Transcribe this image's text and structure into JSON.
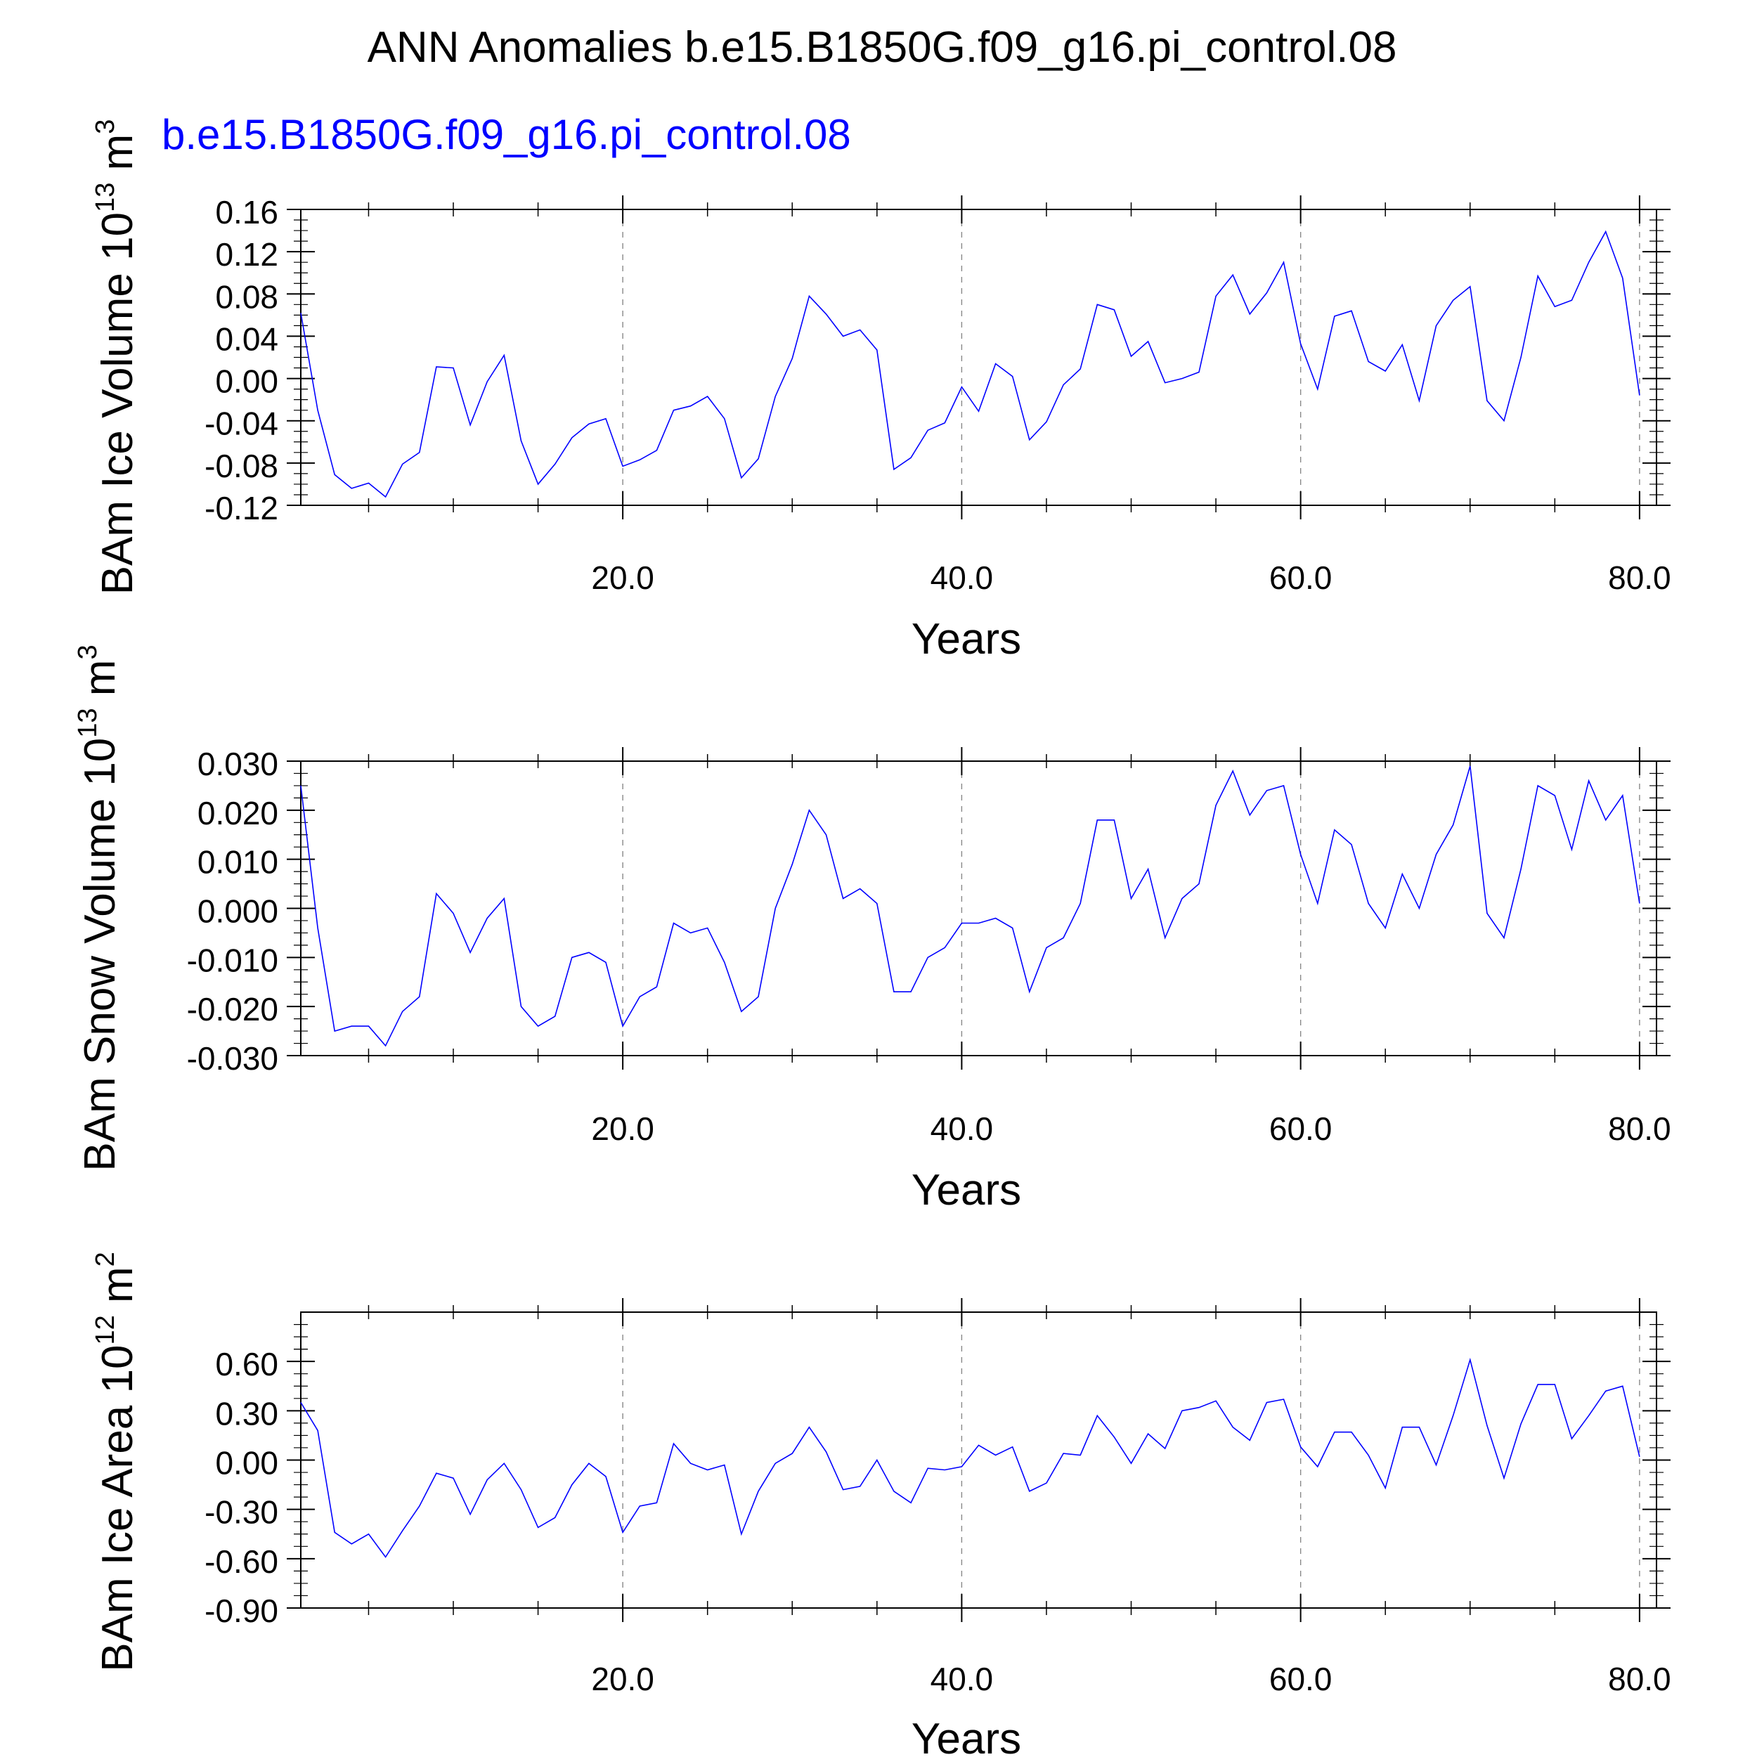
{
  "figure": {
    "title": "ANN Anomalies b.e15.B1850G.f09_g16.pi_control.08",
    "subtitle": "b.e15.B1850G.f09_g16.pi_control.08",
    "subtitle_color": "#0000ff",
    "line_color": "#0000ff"
  },
  "chart_data": [
    {
      "type": "line",
      "ylabel_main": "BAm Ice Volume 10",
      "ylabel_exp": "13",
      "ylabel_unit": " m",
      "ylabel_unit_exp": "3",
      "xlabel": "Years",
      "xlim": [
        1,
        81
      ],
      "ylim": [
        -0.12,
        0.16
      ],
      "xticks": [
        20,
        40,
        60,
        80
      ],
      "xtick_labels": [
        "20.0",
        "40.0",
        "60.0",
        "80.0"
      ],
      "yticks": [
        -0.12,
        -0.08,
        -0.04,
        0.0,
        0.04,
        0.08,
        0.12,
        0.16
      ],
      "ytick_labels": [
        "-0.12",
        "-0.08",
        "-0.04",
        "0.00",
        "0.04",
        "0.08",
        "0.12",
        "0.16"
      ],
      "grid": "vertical dashed at major x ticks",
      "series": [
        {
          "values": [
            0.062,
            -0.03,
            -0.091,
            -0.104,
            -0.099,
            -0.112,
            -0.081,
            -0.07,
            0.011,
            0.01,
            -0.044,
            -0.003,
            0.022,
            -0.059,
            -0.1,
            -0.081,
            -0.056,
            -0.043,
            -0.038,
            -0.083,
            -0.077,
            -0.068,
            -0.03,
            -0.026,
            -0.017,
            -0.038,
            -0.094,
            -0.076,
            -0.017,
            0.019,
            0.078,
            0.061,
            0.04,
            0.046,
            0.027,
            -0.086,
            -0.075,
            -0.049,
            -0.042,
            -0.008,
            -0.031,
            0.014,
            0.002,
            -0.058,
            -0.041,
            -0.006,
            0.009,
            0.07,
            0.065,
            0.021,
            0.035,
            -0.004,
            0.0,
            0.006,
            0.078,
            0.098,
            0.061,
            0.081,
            0.11,
            0.033,
            -0.01,
            0.059,
            0.064,
            0.016,
            0.007,
            0.032,
            -0.021,
            0.05,
            0.074,
            0.087,
            -0.021,
            -0.04,
            0.02,
            0.097,
            0.068,
            0.074,
            0.11,
            0.139,
            0.095,
            -0.016
          ]
        }
      ]
    },
    {
      "type": "line",
      "ylabel_main": "BAm Snow Volume 10",
      "ylabel_exp": "13",
      "ylabel_unit": " m",
      "ylabel_unit_exp": "3",
      "xlabel": "Years",
      "xlim": [
        1,
        81
      ],
      "ylim": [
        -0.03,
        0.03
      ],
      "xticks": [
        20,
        40,
        60,
        80
      ],
      "xtick_labels": [
        "20.0",
        "40.0",
        "60.0",
        "80.0"
      ],
      "yticks": [
        -0.03,
        -0.02,
        -0.01,
        0.0,
        0.01,
        0.02,
        0.03
      ],
      "ytick_labels": [
        "-0.030",
        "-0.020",
        "-0.010",
        "0.000",
        "0.010",
        "0.020",
        "0.030"
      ],
      "grid": "vertical dashed at major x ticks",
      "series": [
        {
          "values": [
            0.025,
            -0.004,
            -0.025,
            -0.024,
            -0.024,
            -0.028,
            -0.021,
            -0.018,
            0.003,
            -0.001,
            -0.009,
            -0.002,
            0.002,
            -0.02,
            -0.024,
            -0.022,
            -0.01,
            -0.009,
            -0.011,
            -0.024,
            -0.018,
            -0.016,
            -0.003,
            -0.005,
            -0.004,
            -0.011,
            -0.021,
            -0.018,
            0.0,
            0.009,
            0.02,
            0.015,
            0.002,
            0.004,
            0.001,
            -0.017,
            -0.017,
            -0.01,
            -0.008,
            -0.003,
            -0.003,
            -0.002,
            -0.004,
            -0.017,
            -0.008,
            -0.006,
            0.001,
            0.018,
            0.018,
            0.002,
            0.008,
            -0.006,
            0.002,
            0.005,
            0.021,
            0.028,
            0.019,
            0.024,
            0.025,
            0.011,
            0.001,
            0.016,
            0.013,
            0.001,
            -0.004,
            0.007,
            0.0,
            0.011,
            0.017,
            0.029,
            -0.001,
            -0.006,
            0.008,
            0.025,
            0.023,
            0.012,
            0.026,
            0.018,
            0.023,
            0.001
          ]
        }
      ]
    },
    {
      "type": "line",
      "ylabel_main": "BAm Ice Area 10",
      "ylabel_exp": "12",
      "ylabel_unit": " m",
      "ylabel_unit_exp": "2",
      "xlabel": "Years",
      "xlim": [
        1,
        81
      ],
      "ylim": [
        -0.9,
        0.9
      ],
      "xticks": [
        20,
        40,
        60,
        80
      ],
      "xtick_labels": [
        "20.0",
        "40.0",
        "60.0",
        "80.0"
      ],
      "yticks": [
        -0.9,
        -0.6,
        -0.3,
        0.0,
        0.3,
        0.6
      ],
      "ytick_labels": [
        "-0.90",
        "-0.60",
        "-0.30",
        "0.00",
        "0.30",
        "0.60"
      ],
      "grid": "vertical dashed at major x ticks",
      "series": [
        {
          "values": [
            0.35,
            0.18,
            -0.44,
            -0.51,
            -0.45,
            -0.59,
            -0.43,
            -0.28,
            -0.08,
            -0.11,
            -0.33,
            -0.12,
            -0.02,
            -0.18,
            -0.41,
            -0.35,
            -0.15,
            -0.02,
            -0.1,
            -0.44,
            -0.28,
            -0.26,
            0.1,
            -0.02,
            -0.06,
            -0.03,
            -0.45,
            -0.19,
            -0.02,
            0.04,
            0.2,
            0.05,
            -0.18,
            -0.16,
            0.0,
            -0.19,
            -0.26,
            -0.05,
            -0.06,
            -0.04,
            0.09,
            0.03,
            0.08,
            -0.19,
            -0.14,
            0.04,
            0.03,
            0.27,
            0.14,
            -0.02,
            0.16,
            0.07,
            0.3,
            0.32,
            0.36,
            0.2,
            0.12,
            0.35,
            0.37,
            0.08,
            -0.04,
            0.17,
            0.17,
            0.03,
            -0.17,
            0.2,
            0.2,
            -0.03,
            0.27,
            0.61,
            0.21,
            -0.11,
            0.22,
            0.46,
            0.46,
            0.13,
            0.27,
            0.42,
            0.45,
            0.02
          ]
        }
      ]
    }
  ]
}
